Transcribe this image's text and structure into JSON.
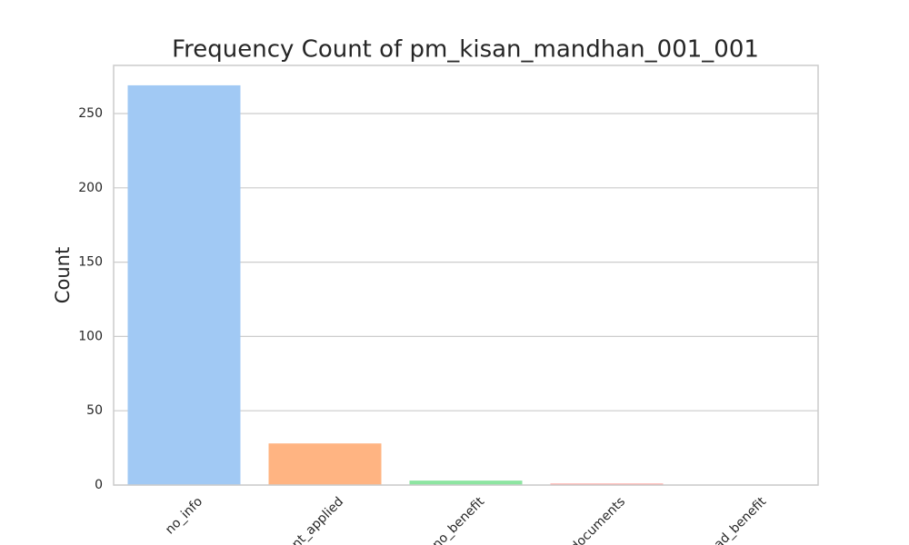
{
  "chart_data": {
    "type": "bar",
    "title": "Frequency Count of pm_kisan_mandhan_001_001",
    "y_label": "Count",
    "categories": [
      "no_info",
      "nt_applied",
      "no_benefit",
      "documents",
      "ad_benefit"
    ],
    "values": [
      269,
      28,
      3,
      1,
      0
    ],
    "colors": [
      "#a1c9f4",
      "#ffb482",
      "#8de5a1",
      "#ff9f9b",
      "#d0bbff"
    ],
    "ylim": [
      0,
      282.4
    ],
    "yticks": [
      0,
      50,
      100,
      150,
      200,
      250
    ],
    "grid": true
  }
}
